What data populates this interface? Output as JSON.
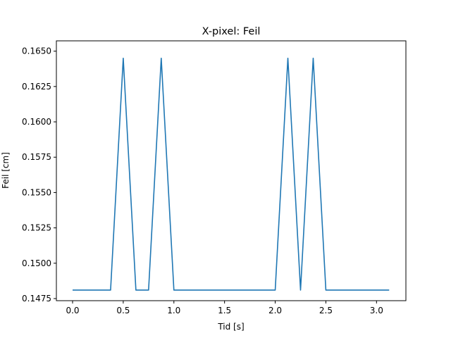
{
  "chart_data": {
    "type": "line",
    "title": "X-pixel: Feil",
    "xlabel": "Tid [s]",
    "ylabel": "Feil [cm]",
    "xlim": [
      -0.16,
      3.29
    ],
    "ylim": [
      0.14735,
      0.16573
    ],
    "grid": false,
    "x_ticks": [
      {
        "value": 0.0,
        "label": "0.0"
      },
      {
        "value": 0.5,
        "label": "0.5"
      },
      {
        "value": 1.0,
        "label": "1.0"
      },
      {
        "value": 1.5,
        "label": "1.5"
      },
      {
        "value": 2.0,
        "label": "2.0"
      },
      {
        "value": 2.5,
        "label": "2.5"
      },
      {
        "value": 3.0,
        "label": "3.0"
      }
    ],
    "y_ticks": [
      {
        "value": 0.1475,
        "label": "0.1475"
      },
      {
        "value": 0.15,
        "label": "0.1500"
      },
      {
        "value": 0.1525,
        "label": "0.1525"
      },
      {
        "value": 0.155,
        "label": "0.1550"
      },
      {
        "value": 0.1575,
        "label": "0.1575"
      },
      {
        "value": 0.16,
        "label": "0.1600"
      },
      {
        "value": 0.1625,
        "label": "0.1625"
      },
      {
        "value": 0.165,
        "label": "0.1650"
      }
    ],
    "series": [
      {
        "color": "#1f77b4",
        "x": [
          0.0,
          0.125,
          0.25,
          0.375,
          0.5,
          0.625,
          0.75,
          0.875,
          1.0,
          1.125,
          1.25,
          1.375,
          1.5,
          1.625,
          1.75,
          1.875,
          2.0,
          2.125,
          2.25,
          2.375,
          2.5,
          2.625,
          2.75,
          2.875,
          3.0,
          3.125
        ],
        "y": [
          0.1481,
          0.1481,
          0.1481,
          0.1481,
          0.1645,
          0.1481,
          0.1481,
          0.1645,
          0.1481,
          0.1481,
          0.1481,
          0.1481,
          0.1481,
          0.1481,
          0.1481,
          0.1481,
          0.1481,
          0.1645,
          0.1481,
          0.1645,
          0.1481,
          0.1481,
          0.1481,
          0.1481,
          0.1481,
          0.1481
        ]
      }
    ]
  }
}
